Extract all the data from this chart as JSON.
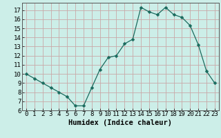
{
  "x": [
    0,
    1,
    2,
    3,
    4,
    5,
    6,
    7,
    8,
    9,
    10,
    11,
    12,
    13,
    14,
    15,
    16,
    17,
    18,
    19,
    20,
    21,
    22,
    23
  ],
  "y": [
    10,
    9.5,
    9,
    8.5,
    8,
    7.5,
    6.5,
    6.5,
    8.5,
    10.5,
    11.8,
    12,
    13.3,
    13.8,
    17.3,
    16.8,
    16.5,
    17.3,
    16.5,
    16.2,
    15.3,
    13.2,
    10.3,
    9
  ],
  "line_color": "#1a6b5e",
  "marker": "D",
  "marker_size": 2.5,
  "bg_color": "#cceee8",
  "plot_bg_color": "#cceee8",
  "grid_color": "#c9a8a8",
  "xlabel": "Humidex (Indice chaleur)",
  "xlim": [
    -0.5,
    23.5
  ],
  "ylim": [
    6,
    17.8
  ],
  "xticks": [
    0,
    1,
    2,
    3,
    4,
    5,
    6,
    7,
    8,
    9,
    10,
    11,
    12,
    13,
    14,
    15,
    16,
    17,
    18,
    19,
    20,
    21,
    22,
    23
  ],
  "yticks": [
    6,
    7,
    8,
    9,
    10,
    11,
    12,
    13,
    14,
    15,
    16,
    17
  ],
  "xlabel_fontsize": 7.5,
  "tick_fontsize": 6.5
}
